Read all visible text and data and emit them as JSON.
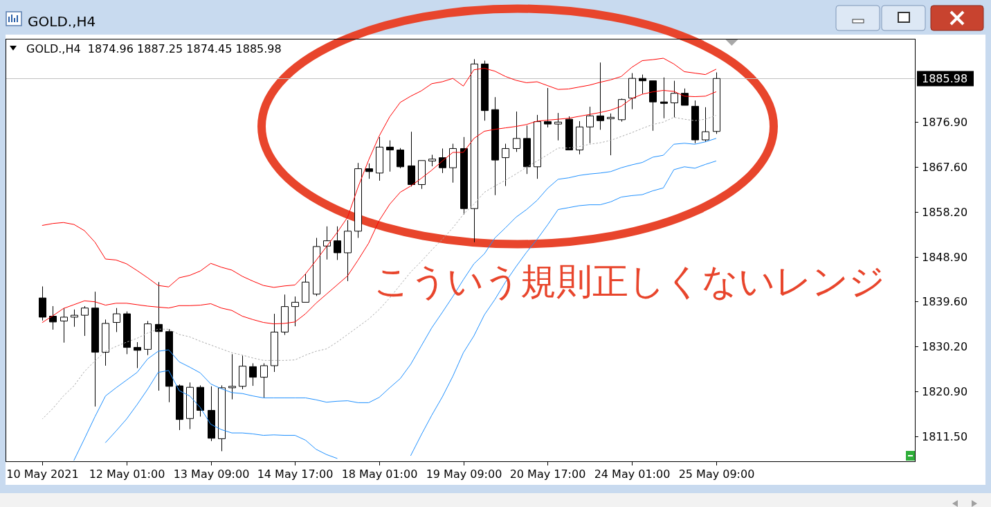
{
  "chart_data": {
    "type": "candlestick",
    "title": "GOLD.,H4",
    "subtitle": "GOLD.,H4  1874.96 1887.25 1874.45 1885.98",
    "categories": [
      "10 May 2021",
      null,
      null,
      null,
      null,
      null,
      null,
      null,
      "12 May 01:00",
      null,
      null,
      null,
      null,
      null,
      null,
      null,
      "13 May 09:00",
      null,
      null,
      null,
      null,
      null,
      null,
      null,
      "14 May 17:00",
      null,
      null,
      null,
      null,
      null,
      null,
      null,
      "18 May 01:00",
      null,
      null,
      null,
      null,
      null,
      null,
      null,
      "19 May 09:00",
      null,
      null,
      null,
      null,
      null,
      null,
      null,
      "20 May 17:00",
      null,
      null,
      null,
      null,
      null,
      null,
      null,
      "24 May 01:00",
      null,
      null,
      null,
      null,
      null,
      null,
      null,
      "25 May 09:00"
    ],
    "ohlc": [
      [
        1840.3,
        1842.7,
        1835.6,
        1836.3
      ],
      [
        1836.5,
        1838.6,
        1833.7,
        1835.3
      ],
      [
        1835.5,
        1838.2,
        1831.0,
        1836.3
      ],
      [
        1836.3,
        1837.9,
        1834.3,
        1836.7
      ],
      [
        1836.7,
        1838.6,
        1832.4,
        1838.2
      ],
      [
        1838.2,
        1841.6,
        1817.7,
        1829.0
      ],
      [
        1829.0,
        1835.8,
        1826.2,
        1835.0
      ],
      [
        1835.2,
        1838.2,
        1833.2,
        1837.0
      ],
      [
        1837.0,
        1837.5,
        1828.6,
        1830.0
      ],
      [
        1830.0,
        1831.1,
        1825.7,
        1829.4
      ],
      [
        1829.6,
        1835.5,
        1828.4,
        1834.9
      ],
      [
        1834.8,
        1843.6,
        1821.0,
        1833.3
      ],
      [
        1833.3,
        1833.8,
        1818.6,
        1821.9
      ],
      [
        1822.0,
        1822.3,
        1812.8,
        1815.0
      ],
      [
        1815.2,
        1822.7,
        1813.0,
        1821.7
      ],
      [
        1821.7,
        1822.1,
        1815.6,
        1816.9
      ],
      [
        1816.9,
        1821.9,
        1810.5,
        1811.1
      ],
      [
        1811.0,
        1822.1,
        1808.4,
        1821.6
      ],
      [
        1821.6,
        1828.6,
        1819.2,
        1821.9
      ],
      [
        1821.9,
        1828.3,
        1821.3,
        1826.1
      ],
      [
        1826.0,
        1826.7,
        1822.0,
        1823.8
      ],
      [
        1823.8,
        1826.7,
        1819.5,
        1826.2
      ],
      [
        1826.2,
        1837.0,
        1824.9,
        1833.2
      ],
      [
        1833.2,
        1841.0,
        1832.6,
        1838.5
      ],
      [
        1838.5,
        1840.6,
        1834.4,
        1839.4
      ],
      [
        1839.4,
        1845.3,
        1839.4,
        1843.6
      ],
      [
        1841.1,
        1852.8,
        1840.7,
        1851.0
      ],
      [
        1851.1,
        1855.2,
        1848.3,
        1852.2
      ],
      [
        1852.2,
        1855.2,
        1848.2,
        1849.7
      ],
      [
        1849.7,
        1856.5,
        1843.8,
        1854.2
      ],
      [
        1854.2,
        1868.4,
        1852.8,
        1867.2
      ],
      [
        1867.2,
        1868.3,
        1865.1,
        1866.6
      ],
      [
        1866.3,
        1873.8,
        1864.7,
        1871.7
      ],
      [
        1871.7,
        1873.1,
        1866.6,
        1871.1
      ],
      [
        1871.1,
        1871.5,
        1867.3,
        1867.6
      ],
      [
        1867.8,
        1874.9,
        1863.5,
        1863.9
      ],
      [
        1863.9,
        1868.9,
        1863.0,
        1868.9
      ],
      [
        1868.8,
        1870.1,
        1867.7,
        1869.2
      ],
      [
        1869.5,
        1871.4,
        1866.3,
        1867.4
      ],
      [
        1867.4,
        1872.4,
        1864.3,
        1871.4
      ],
      [
        1871.4,
        1873.8,
        1857.7,
        1858.9
      ],
      [
        1858.9,
        1890.0,
        1851.9,
        1889.0
      ],
      [
        1889.0,
        1889.7,
        1877.2,
        1879.3
      ],
      [
        1879.5,
        1882.1,
        1861.7,
        1869.0
      ],
      [
        1869.5,
        1872.4,
        1863.6,
        1871.4
      ],
      [
        1871.4,
        1879.1,
        1870.7,
        1873.5
      ],
      [
        1873.5,
        1876.2,
        1866.1,
        1867.6
      ],
      [
        1867.6,
        1878.4,
        1865.1,
        1877.0
      ],
      [
        1877.0,
        1884.0,
        1875.8,
        1876.5
      ],
      [
        1876.5,
        1878.8,
        1873.1,
        1876.9
      ],
      [
        1877.5,
        1878.1,
        1871.1,
        1871.1
      ],
      [
        1871.1,
        1877.1,
        1870.2,
        1875.9
      ],
      [
        1875.9,
        1880.1,
        1872.5,
        1878.2
      ],
      [
        1878.2,
        1889.3,
        1875.3,
        1877.2
      ],
      [
        1877.6,
        1878.7,
        1870.0,
        1877.9
      ],
      [
        1877.4,
        1881.8,
        1877.0,
        1881.6
      ],
      [
        1881.9,
        1887.1,
        1879.6,
        1886.0
      ],
      [
        1886.0,
        1886.8,
        1882.8,
        1885.5
      ],
      [
        1885.5,
        1885.5,
        1875.1,
        1881.1
      ],
      [
        1881.1,
        1886.2,
        1877.7,
        1880.8
      ],
      [
        1880.9,
        1885.5,
        1877.9,
        1882.9
      ],
      [
        1882.9,
        1883.9,
        1880.4,
        1880.4
      ],
      [
        1880.2,
        1881.4,
        1872.5,
        1873.2
      ],
      [
        1873.2,
        1880.0,
        1872.8,
        1874.9
      ],
      [
        1874.96,
        1887.25,
        1874.45,
        1885.98
      ]
    ],
    "series": [
      {
        "type": "line",
        "color": "#ff0000",
        "line_style": "solid",
        "values": [
          1855.4,
          1855.8,
          1856.0,
          1855.6,
          1854.3,
          1851.9,
          1848.4,
          1848.2,
          1847.4,
          1846.0,
          1844.5,
          1842.9,
          1842.6,
          1844.5,
          1845.0,
          1845.9,
          1847.5,
          1846.7,
          1846.1,
          1844.8,
          1843.8,
          1842.9,
          1842.5,
          1842.8,
          1843.0,
          1845.3,
          1848.1,
          1851.0,
          1853.9,
          1857.1,
          1863.4,
          1869.0,
          1874.0,
          1878.0,
          1881.0,
          1882.3,
          1883.4,
          1884.9,
          1885.3,
          1886.0,
          1884.4,
          1887.8,
          1888.1,
          1887.5,
          1886.4,
          1885.6,
          1885.1,
          1885.3,
          1884.5,
          1883.7,
          1883.8,
          1884.2,
          1884.6,
          1885.2,
          1885.7,
          1886.4,
          1888.3,
          1889.7,
          1889.9,
          1890.2,
          1889.0,
          1887.4,
          1887.1,
          1886.8,
          1887.9
        ]
      },
      {
        "type": "line",
        "color": "#ff0000",
        "line_style": "solid",
        "values": [
          1835.2,
          1836.6,
          1838.1,
          1838.9,
          1839.7,
          1839.5,
          1838.8,
          1839.2,
          1839.2,
          1838.9,
          1838.6,
          1838.4,
          1838.2,
          1838.7,
          1838.7,
          1838.8,
          1839.1,
          1838.2,
          1837.7,
          1836.5,
          1835.8,
          1835.2,
          1834.9,
          1835.0,
          1835.3,
          1837.0,
          1839.2,
          1841.1,
          1843.0,
          1844.9,
          1848.2,
          1851.7,
          1856.4,
          1859.8,
          1862.3,
          1863.6,
          1865.2,
          1866.9,
          1868.8,
          1870.6,
          1870.6,
          1873.5,
          1875.0,
          1875.4,
          1875.7,
          1876.0,
          1876.4,
          1877.1,
          1877.3,
          1877.5,
          1877.7,
          1878.1,
          1878.5,
          1878.9,
          1879.4,
          1880.2,
          1881.8,
          1882.7,
          1883.2,
          1883.5,
          1883.3,
          1882.3,
          1882.2,
          1882.3,
          1883.2
        ]
      },
      {
        "type": "line",
        "color": "#a9a9a9",
        "line_style": "dotted",
        "values": [
          1815.1,
          1817.3,
          1819.9,
          1822.0,
          1825.0,
          1827.2,
          1829.2,
          1830.2,
          1831.1,
          1831.9,
          1833.0,
          1833.8,
          1833.8,
          1832.7,
          1832.2,
          1831.3,
          1830.5,
          1829.7,
          1828.9,
          1828.4,
          1827.8,
          1827.3,
          1827.3,
          1827.3,
          1827.4,
          1828.4,
          1829.2,
          1829.7,
          1831.1,
          1832.7,
          1834.3,
          1835.9,
          1837.9,
          1840.3,
          1843.0,
          1845.7,
          1847.9,
          1850.3,
          1852.5,
          1854.9,
          1857.7,
          1859.8,
          1862.3,
          1863.6,
          1864.8,
          1866.1,
          1867.5,
          1868.8,
          1870.1,
          1871.5,
          1871.5,
          1871.8,
          1872.3,
          1872.6,
          1873.1,
          1873.9,
          1874.7,
          1875.6,
          1876.4,
          1876.9,
          1877.9,
          1877.5,
          1877.2,
          1877.5,
          1878.3
        ]
      },
      {
        "type": "line",
        "color": "#1e90ff",
        "line_style": "solid",
        "values": [
          null,
          null,
          null,
          1806.5,
          1811.0,
          1815.6,
          1819.9,
          1821.6,
          1823.2,
          1824.8,
          1827.6,
          1829.2,
          1829.5,
          1827.0,
          1825.9,
          1824.7,
          1822.4,
          1821.4,
          1820.6,
          1820.4,
          1819.9,
          1819.5,
          1819.5,
          1819.5,
          1819.5,
          1819.5,
          1819.1,
          1818.6,
          1818.8,
          1818.9,
          1818.5,
          1818.5,
          1819.6,
          1821.6,
          1823.5,
          1826.5,
          1830.3,
          1834.1,
          1837.3,
          1840.6,
          1844.1,
          1847.4,
          1849.5,
          1852.8,
          1854.9,
          1857.1,
          1858.7,
          1860.6,
          1863.1,
          1865.0,
          1865.3,
          1865.8,
          1866.1,
          1866.3,
          1866.6,
          1867.4,
          1868.0,
          1868.5,
          1869.6,
          1870.0,
          1872.3,
          1872.5,
          1872.3,
          1872.8,
          1873.5
        ]
      },
      {
        "type": "line",
        "color": "#1e90ff",
        "line_style": "solid",
        "values": [
          null,
          null,
          null,
          null,
          null,
          null,
          1810.2,
          1812.6,
          1815.1,
          1818.1,
          1821.3,
          1824.8,
          1825.2,
          1821.0,
          1819.9,
          1817.5,
          1814.0,
          1812.9,
          1812.2,
          1812.2,
          1812.0,
          1811.7,
          1811.8,
          1811.7,
          1811.7,
          1810.7,
          1808.8,
          1807.7,
          1806.9,
          null,
          null,
          null,
          null,
          null,
          null,
          1807.5,
          1811.8,
          1815.9,
          1819.7,
          1824.0,
          1828.9,
          1832.4,
          1836.8,
          1840.0,
          1843.6,
          1846.8,
          1849.8,
          1852.5,
          1855.5,
          1858.7,
          1859.1,
          1859.5,
          1859.7,
          1859.7,
          1860.3,
          1861.3,
          1861.6,
          1861.8,
          1862.6,
          1863.2,
          1867.0,
          1867.6,
          1867.3,
          1868.1,
          1868.8
        ]
      }
    ],
    "ylim": [
      1806.3,
      1894.1
    ],
    "yticks": [
      {
        "value": 1811.5,
        "label": "1811.50"
      },
      {
        "value": 1820.9,
        "label": "1820.90"
      },
      {
        "value": 1830.2,
        "label": "1830.20"
      },
      {
        "value": 1839.6,
        "label": "1839.60"
      },
      {
        "value": 1848.9,
        "label": "1848.90"
      },
      {
        "value": 1858.2,
        "label": "1858.20"
      },
      {
        "value": 1867.6,
        "label": "1867.60"
      },
      {
        "value": 1876.9,
        "label": "1876.90"
      }
    ],
    "ref_lines": [
      {
        "axis": "y",
        "value": 1885.98,
        "label": "1885.98",
        "color": "#c0c0c0"
      }
    ],
    "annotations": [
      "こういう規則正しくないレンジ"
    ]
  }
}
